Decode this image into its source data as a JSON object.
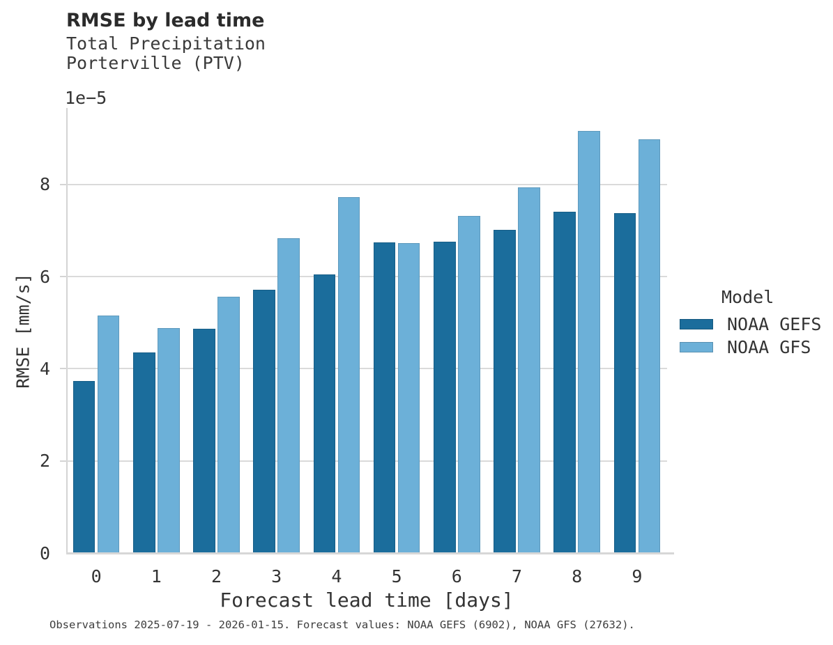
{
  "title": "RMSE by lead time",
  "subtitle_line1": "Total Precipitation",
  "subtitle_line2": "Porterville (PTV)",
  "axis_offset": "1e−5",
  "caption": "Observations 2025-07-19 - 2026-01-15. Forecast values: NOAA GEFS (6902), NOAA GFS (27632).",
  "legend": {
    "title": "Model",
    "items": [
      {
        "label": "NOAA GEFS",
        "color": "#1b6d9c"
      },
      {
        "label": "NOAA GFS",
        "color": "#6cb0d8"
      }
    ]
  },
  "chart_data": {
    "type": "bar",
    "title": "RMSE by lead time",
    "subtitle": [
      "Total Precipitation",
      "Porterville (PTV)"
    ],
    "xlabel": "Forecast lead time [days]",
    "ylabel": "RMSE [mm/s]",
    "y_offset_label": "1e−5",
    "value_scale_note": "values are ×1e-5 mm/s",
    "categories": [
      "0",
      "1",
      "2",
      "3",
      "4",
      "5",
      "6",
      "7",
      "8",
      "9"
    ],
    "series": [
      {
        "name": "NOAA GEFS",
        "color": "#1b6d9c",
        "values": [
          3.73,
          4.35,
          4.87,
          5.72,
          6.05,
          6.74,
          6.75,
          7.01,
          7.4,
          7.38
        ]
      },
      {
        "name": "NOAA GFS",
        "color": "#6cb0d8",
        "values": [
          5.15,
          4.89,
          5.57,
          6.84,
          7.72,
          6.73,
          7.31,
          7.94,
          9.16,
          8.98
        ]
      }
    ],
    "yticks": [
      0,
      2,
      4,
      6,
      8
    ],
    "ylim": [
      0,
      9.66
    ],
    "grid": "horizontal",
    "gridline_color": "#dadada",
    "legend_title": "Model",
    "legend_position": "right-outside"
  }
}
